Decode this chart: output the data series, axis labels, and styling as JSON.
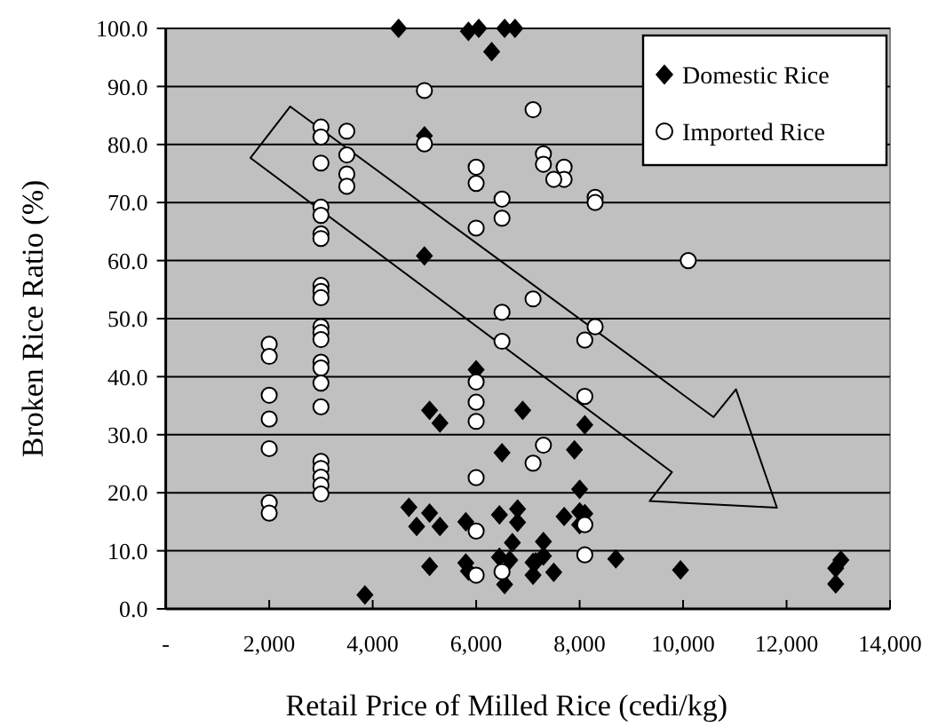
{
  "chart_data": {
    "type": "scatter",
    "xlabel": "Retail Price of Milled Rice (cedi/kg)",
    "ylabel": "Broken Rice Ratio (%)",
    "xlim": [
      0,
      14000
    ],
    "xticks": [
      {
        "value": 0,
        "label": "-"
      },
      {
        "value": 2000,
        "label": "2,000"
      },
      {
        "value": 4000,
        "label": "4,000"
      },
      {
        "value": 6000,
        "label": "6,000"
      },
      {
        "value": 8000,
        "label": "8,000"
      },
      {
        "value": 10000,
        "label": "10,000"
      },
      {
        "value": 12000,
        "label": "12,000"
      },
      {
        "value": 14000,
        "label": "14,000"
      }
    ],
    "ylim": [
      0,
      100
    ],
    "yticks": [
      {
        "value": 0,
        "label": "0.0"
      },
      {
        "value": 10,
        "label": "10.0"
      },
      {
        "value": 20,
        "label": "20.0"
      },
      {
        "value": 30,
        "label": "30.0"
      },
      {
        "value": 40,
        "label": "40.0"
      },
      {
        "value": 50,
        "label": "50.0"
      },
      {
        "value": 60,
        "label": "60.0"
      },
      {
        "value": 70,
        "label": "70.0"
      },
      {
        "value": 80,
        "label": "80.0"
      },
      {
        "value": 90,
        "label": "90.0"
      },
      {
        "value": 100,
        "label": "100.0"
      }
    ],
    "grid": "y",
    "legend": "top right",
    "series": [
      {
        "name": "Domestic Rice",
        "color": "#000000",
        "marker": "diamond",
        "x": [
          4500,
          5850,
          6050,
          6550,
          6750,
          6300,
          5000,
          5000,
          6000,
          5100,
          5300,
          6900,
          6500,
          8100,
          7900,
          8000,
          4700,
          5100,
          4850,
          5300,
          5800,
          6450,
          6800,
          6800,
          6700,
          6450,
          6650,
          5100,
          5800,
          5850,
          6550,
          3850,
          7100,
          7700,
          8000,
          8100,
          8000,
          7300,
          7300,
          7150,
          7100,
          7500,
          8700,
          9950,
          13050,
          12950,
          12950
        ],
        "values": [
          100,
          99.5,
          100,
          100,
          100,
          96,
          81.5,
          60.8,
          41.2,
          34.2,
          32,
          34.2,
          26.9,
          31.7,
          27.4,
          20.6,
          17.5,
          16.5,
          14.2,
          14.2,
          15,
          16.2,
          17.2,
          14.9,
          11.4,
          8.9,
          8.4,
          7.3,
          7.9,
          6.5,
          4.2,
          2.4,
          8,
          15.9,
          16.7,
          16.4,
          14.5,
          11.6,
          9.1,
          8.1,
          5.8,
          6.3,
          8.6,
          6.7,
          8.4,
          7,
          4.3
        ]
      },
      {
        "name": "Imported Rice",
        "color": "#ffffff",
        "marker": "circle",
        "x": [
          2000,
          2000,
          2000,
          2000,
          2000,
          2000,
          2000,
          3000,
          3000,
          3000,
          3000,
          3000,
          3000,
          3000,
          3000,
          3000,
          3000,
          3000,
          3000,
          3000,
          3000,
          3000,
          3000,
          3000,
          3000,
          3000,
          3000,
          3000,
          3000,
          3500,
          3500,
          3500,
          3500,
          5000,
          5000,
          6000,
          6000,
          6000,
          6000,
          6000,
          6000,
          6000,
          6000,
          6000,
          6500,
          6500,
          6500,
          6500,
          6500,
          7100,
          7100,
          7100,
          7300,
          7300,
          7300,
          7700,
          7700,
          7500,
          8300,
          8300,
          8300,
          8100,
          8100,
          8100,
          8100,
          10100
        ],
        "values": [
          45.6,
          43.5,
          36.8,
          32.7,
          27.6,
          18.3,
          16.5,
          83,
          81.3,
          76.8,
          69.2,
          67.8,
          64.6,
          63.8,
          55.7,
          54.7,
          53.6,
          48.6,
          47.6,
          46.4,
          42.5,
          41.5,
          38.9,
          34.8,
          25.4,
          24.2,
          22.7,
          21.3,
          19.8,
          82.3,
          78.2,
          74.9,
          72.8,
          89.3,
          80.1,
          76.1,
          73.3,
          65.6,
          39.1,
          35.6,
          32.3,
          22.6,
          13.4,
          5.8,
          70.6,
          67.3,
          51.1,
          46.1,
          6.4,
          86,
          53.4,
          25.1,
          78.4,
          76.6,
          28.2,
          76.1,
          74,
          74,
          70.9,
          70,
          48.6,
          46.3,
          36.6,
          14.5,
          9.3,
          60
        ]
      }
    ]
  }
}
